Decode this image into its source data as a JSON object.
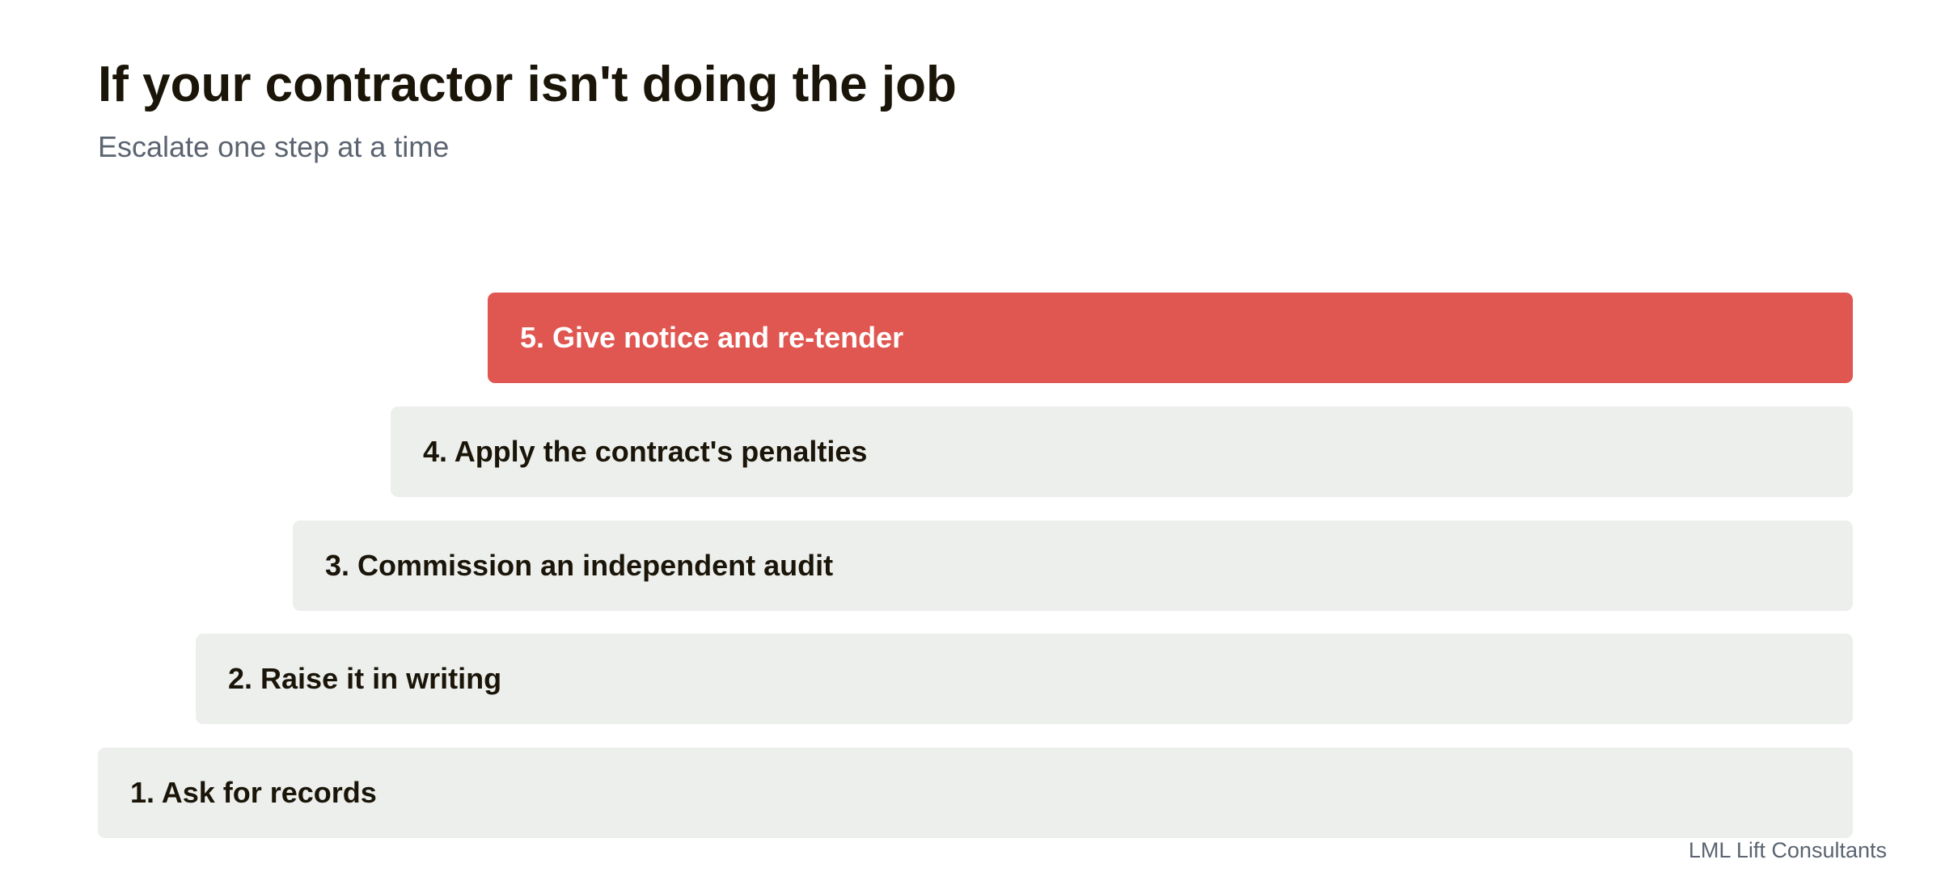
{
  "header": {
    "title": "If your contractor isn't doing the job",
    "subtitle": "Escalate one step at a time"
  },
  "steps": [
    {
      "label": "1. Ask for records",
      "highlighted": false
    },
    {
      "label": "2. Raise it in writing",
      "highlighted": false
    },
    {
      "label": "3. Commission an independent audit",
      "highlighted": false
    },
    {
      "label": "4. Apply the contract's penalties",
      "highlighted": false
    },
    {
      "label": "5. Give notice and re-tender",
      "highlighted": true
    }
  ],
  "colors": {
    "highlight": "#e05650",
    "step_background": "#edefed",
    "text": "#1a1508",
    "muted_text": "#5b6470"
  },
  "footer": {
    "credit": "LML Lift Consultants"
  }
}
